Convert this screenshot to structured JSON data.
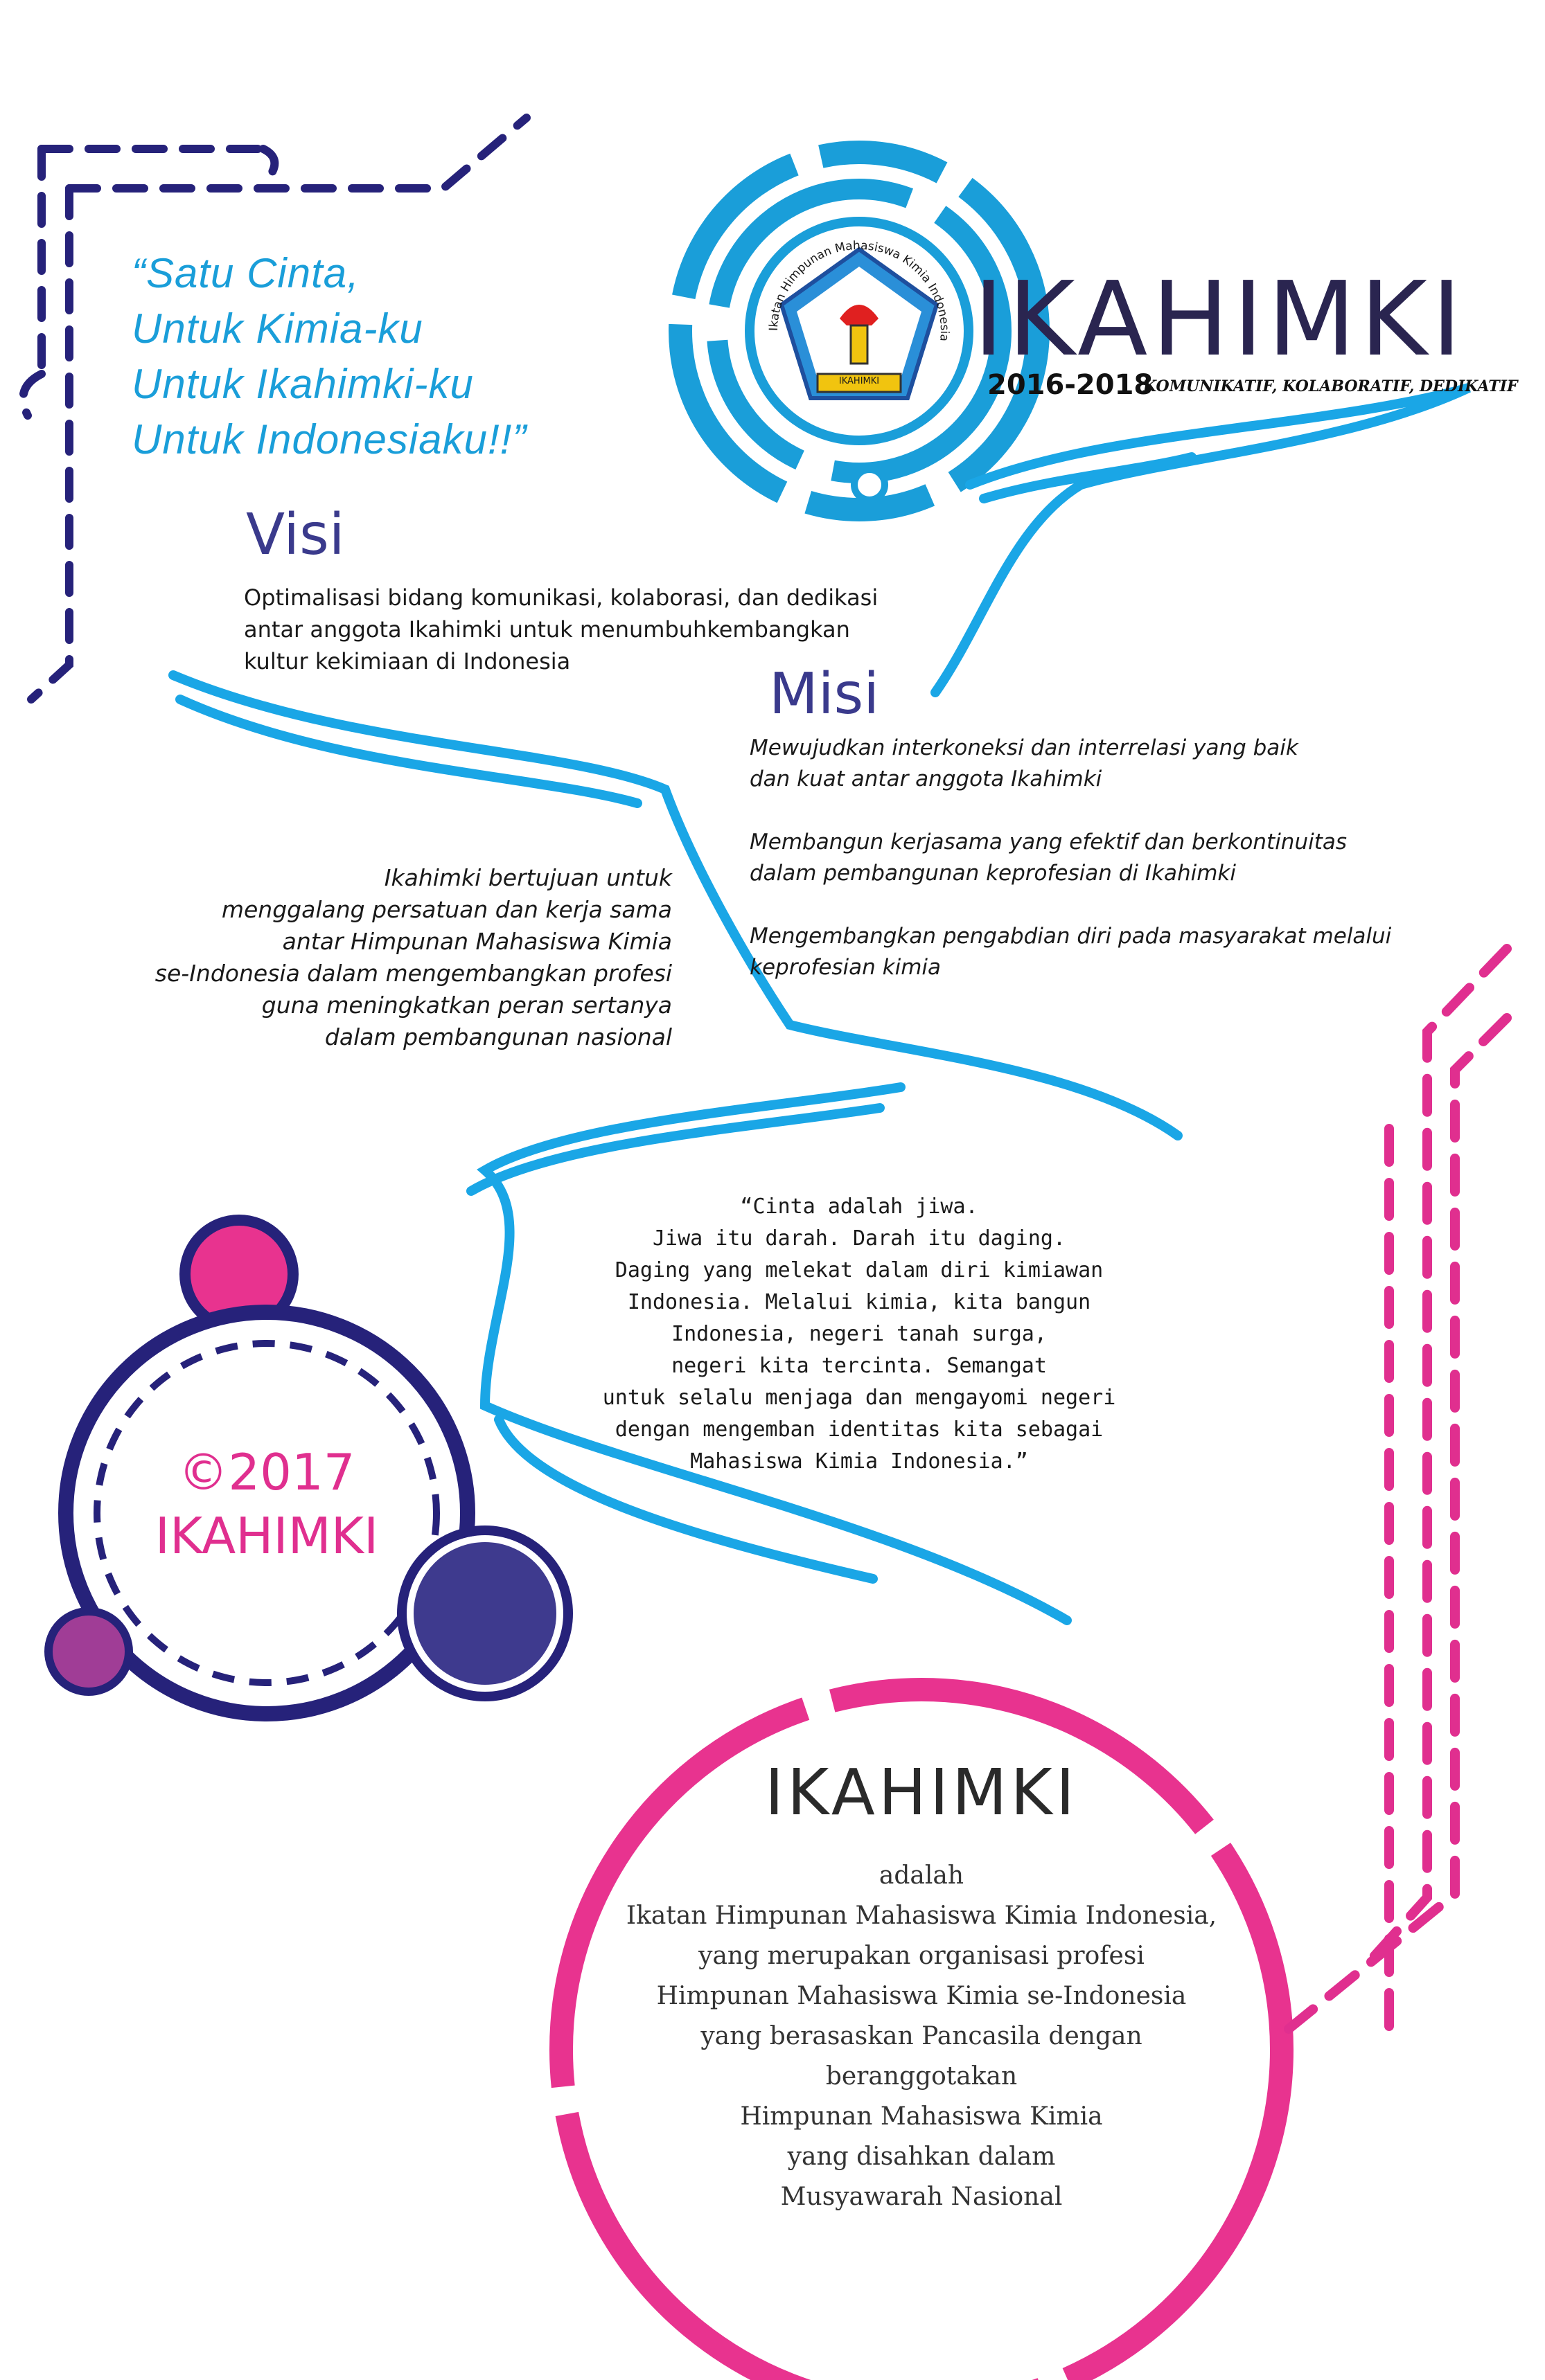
{
  "colors": {
    "blue": "#1a9ed9",
    "navy": "#26227a",
    "pink": "#e8338f",
    "purple": "#a03d96",
    "indigo": "#3e3a8e"
  },
  "header": {
    "quote_lines": [
      "“Satu Cinta,",
      "Untuk Kimia-ku",
      "Untuk Ikahimki-ku",
      "Untuk Indonesiaku!!”"
    ]
  },
  "brand": {
    "title": "IKAHIMKI",
    "years": "2016-2018",
    "motto": "KOMUNIKATIF, KOLABORATIF, DEDIKATIF",
    "logo_ring_text": "Ikatan Himpunan Mahasiswa Kimia Indonesia",
    "logo_banner": "IKAHIMKI"
  },
  "visi": {
    "title": "Visi",
    "text_lines": [
      "Optimalisasi bidang komunikasi, kolaborasi, dan dedikasi",
      "antar anggota Ikahimki untuk menumbuhkembangkan",
      "kultur kekimiaan di Indonesia"
    ]
  },
  "misi": {
    "title": "Misi",
    "items": [
      "Mewujudkan interkoneksi dan interrelasi yang baik\n dan kuat antar anggota Ikahimki",
      "Membangun kerjasama yang efektif dan berkontinuitas\ndalam pembangunan keprofesian di Ikahimki",
      "Mengembangkan pengabdian diri pada masyarakat melalui\nkeprofesian kimia"
    ]
  },
  "tujuan": "Ikahimki bertujuan untuk\nmenggalang persatuan dan kerja sama\nantar Himpunan Mahasiswa Kimia\nse-Indonesia dalam mengembangkan profesi\nguna meningkatkan peran sertanya\ndalam pembangunan nasional",
  "poem": "“Cinta adalah jiwa.\nJiwa itu darah. Darah itu daging.\nDaging yang melekat dalam diri kimiawan\nIndonesia. Melalui kimia, kita bangun\nIndonesia, negeri tanah surga,\nnegeri kita tercinta. Semangat\nuntuk selalu menjaga dan mengayomi negeri\ndengan mengemban identitas kita sebagai\nMahasiswa Kimia Indonesia.”",
  "copyright": {
    "year": "©2017",
    "name": "IKAHIMKI"
  },
  "about": {
    "title": "IKAHIMKI",
    "text": "adalah\nIkatan Himpunan Mahasiswa Kimia Indonesia,\nyang merupakan organisasi profesi\nHimpunan Mahasiswa Kimia se-Indonesia\nyang berasaskan Pancasila dengan\nberanggotakan\nHimpunan Mahasiswa Kimia\nyang disahkan dalam\nMusyawarah Nasional"
  }
}
